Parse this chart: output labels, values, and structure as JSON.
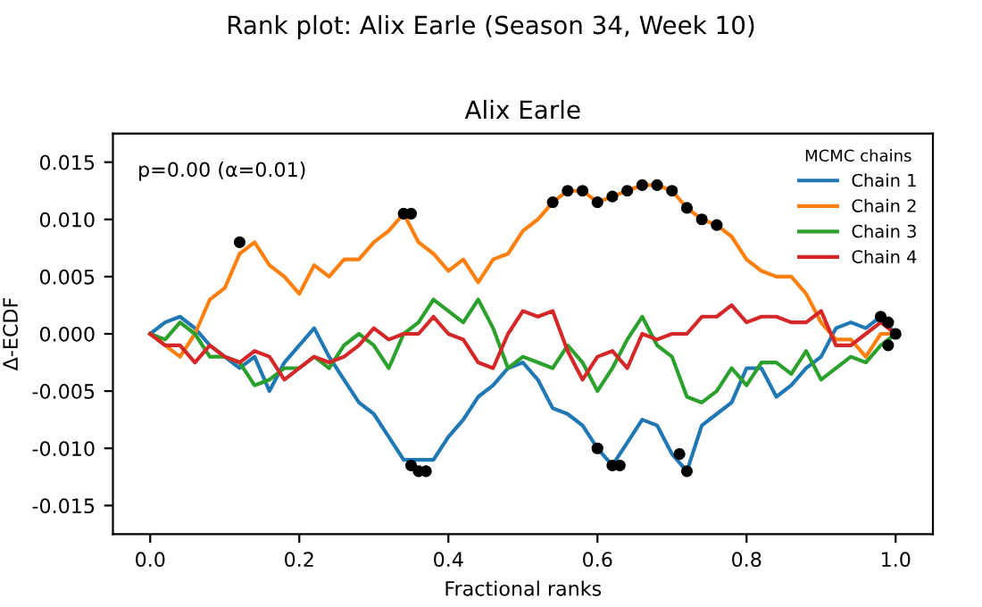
{
  "chart_data": {
    "type": "line",
    "title": "Rank plot: Alix Earle (Season 34, Week 10)",
    "subtitle": "Alix Earle",
    "xlabel": "Fractional ranks",
    "ylabel": "Δ-ECDF",
    "legend_title": "MCMC chains",
    "legend": "top right",
    "grid": false,
    "marker": "none",
    "line_style": "solid",
    "annotations": [
      "p=0.00 (α=0.01)"
    ],
    "xlim": [
      -0.05,
      1.05
    ],
    "xticks": [
      {
        "value": 0,
        "label": "0.0"
      },
      0.2,
      0.4,
      0.6,
      0.8,
      {
        "value": 1,
        "label": "1.0"
      }
    ],
    "ylim": [
      -0.0175,
      0.0175
    ],
    "yticks": [
      -0.015,
      {
        "value": -0.01,
        "label": "-0.010"
      },
      -0.005,
      {
        "value": 0,
        "label": "0.000"
      },
      0.005,
      {
        "value": 0.01,
        "label": "0.010"
      },
      0.015
    ],
    "x": [
      0,
      0.02,
      0.04,
      0.06,
      0.08,
      0.1,
      0.12,
      0.14,
      0.16,
      0.18,
      0.2,
      0.22,
      0.24,
      0.26,
      0.28,
      0.3,
      0.32,
      0.34,
      0.36,
      0.38,
      0.4,
      0.42,
      0.44,
      0.46,
      0.48,
      0.5,
      0.52,
      0.54,
      0.56,
      0.58,
      0.6,
      0.62,
      0.64,
      0.66,
      0.68,
      0.7,
      0.72,
      0.74,
      0.76,
      0.78,
      0.8,
      0.82,
      0.84,
      0.86,
      0.88,
      0.9,
      0.92,
      0.94,
      0.96,
      0.98,
      1.0
    ],
    "series": [
      {
        "name": "Chain 1",
        "color": "#1f77b4",
        "values": [
          0,
          0.001,
          0.0015,
          0.0005,
          -0.001,
          -0.002,
          -0.003,
          -0.002,
          -0.005,
          -0.0025,
          -0.001,
          0.0005,
          -0.002,
          -0.004,
          -0.006,
          -0.007,
          -0.009,
          -0.011,
          -0.011,
          -0.011,
          -0.009,
          -0.0075,
          -0.0055,
          -0.0045,
          -0.003,
          -0.0025,
          -0.004,
          -0.0065,
          -0.007,
          -0.008,
          -0.01,
          -0.0115,
          -0.0095,
          -0.0075,
          -0.008,
          -0.0105,
          -0.012,
          -0.008,
          -0.007,
          -0.006,
          -0.003,
          -0.003,
          -0.0055,
          -0.0045,
          -0.003,
          -0.002,
          0.0005,
          0.001,
          0.0005,
          0.0015,
          0
        ]
      },
      {
        "name": "Chain 2",
        "color": "#ff7f0e",
        "values": [
          0,
          -0.001,
          -0.002,
          0,
          0.003,
          0.004,
          0.007,
          0.008,
          0.006,
          0.005,
          0.0035,
          0.006,
          0.005,
          0.0065,
          0.0065,
          0.008,
          0.009,
          0.0105,
          0.008,
          0.007,
          0.0055,
          0.0065,
          0.0045,
          0.0065,
          0.007,
          0.009,
          0.01,
          0.0115,
          0.0125,
          0.0125,
          0.0115,
          0.012,
          0.0125,
          0.013,
          0.013,
          0.0125,
          0.011,
          0.01,
          0.0095,
          0.0085,
          0.0065,
          0.0055,
          0.005,
          0.005,
          0.0035,
          0.001,
          -0.0005,
          -0.0005,
          -0.002,
          0,
          0
        ]
      },
      {
        "name": "Chain 3",
        "color": "#2ca02c",
        "values": [
          0,
          -0.0005,
          0.001,
          0,
          -0.002,
          -0.002,
          -0.0025,
          -0.0045,
          -0.004,
          -0.003,
          -0.003,
          -0.002,
          -0.003,
          -0.001,
          0,
          -0.001,
          -0.003,
          0,
          0.001,
          0.003,
          0.002,
          0.001,
          0.003,
          0.0005,
          -0.003,
          -0.002,
          -0.0025,
          -0.003,
          -0.001,
          -0.0025,
          -0.005,
          -0.003,
          -0.0005,
          0.0015,
          -0.001,
          -0.002,
          -0.0055,
          -0.006,
          -0.005,
          -0.003,
          -0.0045,
          -0.0025,
          -0.0025,
          -0.0035,
          -0.0015,
          -0.004,
          -0.003,
          -0.002,
          -0.0025,
          -0.001,
          0
        ]
      },
      {
        "name": "Chain 4",
        "color": "#d62728",
        "values": [
          0,
          -0.001,
          -0.001,
          -0.0025,
          -0.001,
          -0.002,
          -0.0025,
          -0.0015,
          -0.002,
          -0.004,
          -0.003,
          -0.002,
          -0.0025,
          -0.002,
          -0.001,
          0.0005,
          -0.0005,
          0,
          0,
          0.0015,
          0,
          -0.0005,
          -0.0025,
          -0.003,
          0,
          0.002,
          0.0015,
          0.002,
          -0.0015,
          -0.004,
          -0.002,
          -0.0015,
          -0.003,
          0,
          -0.0005,
          0,
          0,
          0.0015,
          0.0015,
          0.0025,
          0.001,
          0.0015,
          0.0015,
          0.001,
          0.001,
          0.002,
          -0.001,
          -0.001,
          0,
          0.001,
          0
        ]
      },
      {
        "type": "scatter",
        "color": "#000000",
        "marker": "circle",
        "x": [
          0.12,
          0.34,
          0.35,
          0.54,
          0.56,
          0.58,
          0.6,
          0.62,
          0.64,
          0.66,
          0.68,
          0.7,
          0.72,
          0.74,
          0.76,
          0.35,
          0.36,
          0.37,
          0.6,
          0.62,
          0.63,
          0.71,
          0.72,
          0.98,
          0.99,
          0.99,
          1.0
        ],
        "values": [
          0.008,
          0.0105,
          0.0105,
          0.0115,
          0.0125,
          0.0125,
          0.0115,
          0.012,
          0.0125,
          0.013,
          0.013,
          0.0125,
          0.011,
          0.01,
          0.0095,
          -0.0115,
          -0.012,
          -0.012,
          -0.01,
          -0.0115,
          -0.0115,
          -0.0105,
          -0.012,
          0.0015,
          0.001,
          -0.001,
          0
        ]
      }
    ]
  }
}
